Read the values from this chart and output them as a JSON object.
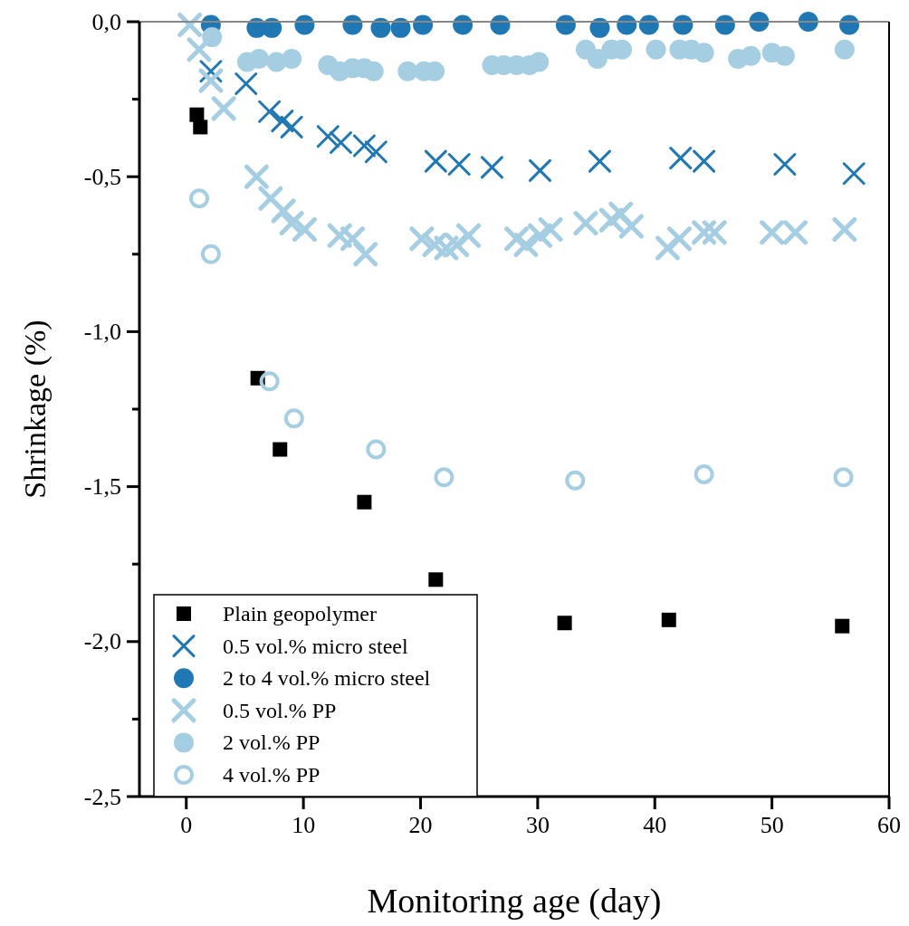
{
  "chart_data": {
    "type": "scatter",
    "xlabel": "Monitoring age (day)",
    "ylabel": "Shrinkage (%)",
    "xlim": [
      -4,
      60
    ],
    "xticks": [
      0,
      10,
      20,
      30,
      40,
      50,
      60
    ],
    "ylim": [
      -2.5,
      0
    ],
    "yticks": [
      {
        "value": 0,
        "label": "0,0"
      },
      {
        "value": -0.25,
        "label": null
      },
      {
        "value": -0.5,
        "label": "-0,5"
      },
      {
        "value": -0.75,
        "label": null
      },
      {
        "value": -1,
        "label": "-1,0"
      },
      {
        "value": -1.25,
        "label": null
      },
      {
        "value": -1.5,
        "label": "-1,5"
      },
      {
        "value": -1.75,
        "label": null
      },
      {
        "value": -2,
        "label": "-2,0"
      },
      {
        "value": -2.25,
        "label": null
      },
      {
        "value": -2.5,
        "label": "-2,5"
      }
    ],
    "grid": false,
    "legend": "bottom left",
    "series": [
      {
        "name": "Plain geopolymer",
        "color": "#000000",
        "marker": "square",
        "x": [
          0.9,
          1.2,
          6.1,
          8.0,
          15.2,
          21.3,
          32.3,
          41.2,
          56.0
        ],
        "values": [
          -0.3,
          -0.34,
          -1.15,
          -1.38,
          -1.55,
          -1.8,
          -1.94,
          -1.93,
          -1.95
        ]
      },
      {
        "name": "0.5 vol.% micro steel",
        "color": "#1f78b4",
        "marker": "cross",
        "x": [
          2.1,
          5.1,
          7.1,
          8.2,
          9.0,
          12.1,
          13.2,
          15.2,
          16.2,
          21.3,
          23.3,
          26.1,
          30.2,
          35.3,
          42.2,
          44.2,
          51.1,
          57.0
        ],
        "values": [
          -0.16,
          -0.2,
          -0.29,
          -0.32,
          -0.34,
          -0.37,
          -0.39,
          -0.4,
          -0.42,
          -0.45,
          -0.46,
          -0.47,
          -0.48,
          -0.45,
          -0.44,
          -0.45,
          -0.46,
          -0.49
        ]
      },
      {
        "name": "2 to 4 vol.% micro steel",
        "color": "#1f78b4",
        "marker": "circle",
        "x": [
          2.1,
          6.0,
          7.3,
          10.1,
          14.2,
          16.6,
          18.3,
          20.2,
          23.6,
          26.8,
          32.4,
          35.3,
          37.6,
          39.5,
          42.4,
          46.0,
          48.9,
          53.1,
          56.6
        ],
        "values": [
          -0.01,
          -0.02,
          -0.02,
          -0.01,
          -0.01,
          -0.02,
          -0.02,
          -0.01,
          -0.01,
          -0.01,
          -0.01,
          -0.02,
          -0.01,
          -0.01,
          -0.01,
          -0.01,
          0,
          0,
          -0.01
        ]
      },
      {
        "name": "0.5 vol.% PP",
        "color": "#a6cee3",
        "marker": "cross",
        "x": [
          0.3,
          1.1,
          2.1,
          3.2,
          6.0,
          7.2,
          8.3,
          9.0,
          10.1,
          13.1,
          14.2,
          15.3,
          20.1,
          21.2,
          22.2,
          23.1,
          24.1,
          28.2,
          29.0,
          30.2,
          31.1,
          34.1,
          36.3,
          37.1,
          38.0,
          41.1,
          42.1,
          44.2,
          45.1,
          50.0,
          52.0,
          56.2
        ],
        "values": [
          -0.01,
          -0.09,
          -0.19,
          -0.28,
          -0.5,
          -0.57,
          -0.61,
          -0.65,
          -0.67,
          -0.69,
          -0.7,
          -0.75,
          -0.7,
          -0.72,
          -0.73,
          -0.72,
          -0.69,
          -0.7,
          -0.72,
          -0.69,
          -0.67,
          -0.65,
          -0.64,
          -0.62,
          -0.66,
          -0.73,
          -0.7,
          -0.68,
          -0.68,
          -0.68,
          -0.68,
          -0.67
        ]
      },
      {
        "name": "2 vol.% PP",
        "color": "#a6cee3",
        "marker": "circle",
        "x": [
          2.2,
          5.2,
          6.2,
          7.7,
          9.0,
          12.1,
          13.1,
          14.2,
          15.2,
          16.0,
          18.9,
          20.3,
          21.2,
          26.1,
          27.1,
          28.2,
          29.3,
          30.1,
          34.1,
          35.1,
          36.3,
          37.2,
          40.1,
          42.1,
          43.1,
          44.2,
          47.1,
          48.2,
          50.0,
          51.1,
          56.2
        ],
        "values": [
          -0.05,
          -0.13,
          -0.12,
          -0.13,
          -0.12,
          -0.14,
          -0.16,
          -0.15,
          -0.15,
          -0.16,
          -0.16,
          -0.16,
          -0.16,
          -0.14,
          -0.14,
          -0.14,
          -0.14,
          -0.13,
          -0.09,
          -0.12,
          -0.09,
          -0.09,
          -0.09,
          -0.09,
          -0.09,
          -0.1,
          -0.12,
          -0.11,
          -0.1,
          -0.11,
          -0.09
        ]
      },
      {
        "name": "4 vol.% PP",
        "color": "#a6cee3",
        "marker": "circle-open",
        "x": [
          1.1,
          2.1,
          7.1,
          9.2,
          16.2,
          22.0,
          33.2,
          44.2,
          56.1
        ],
        "values": [
          -0.57,
          -0.75,
          -1.16,
          -1.28,
          -1.38,
          -1.47,
          -1.48,
          -1.46,
          -1.47
        ]
      }
    ]
  }
}
